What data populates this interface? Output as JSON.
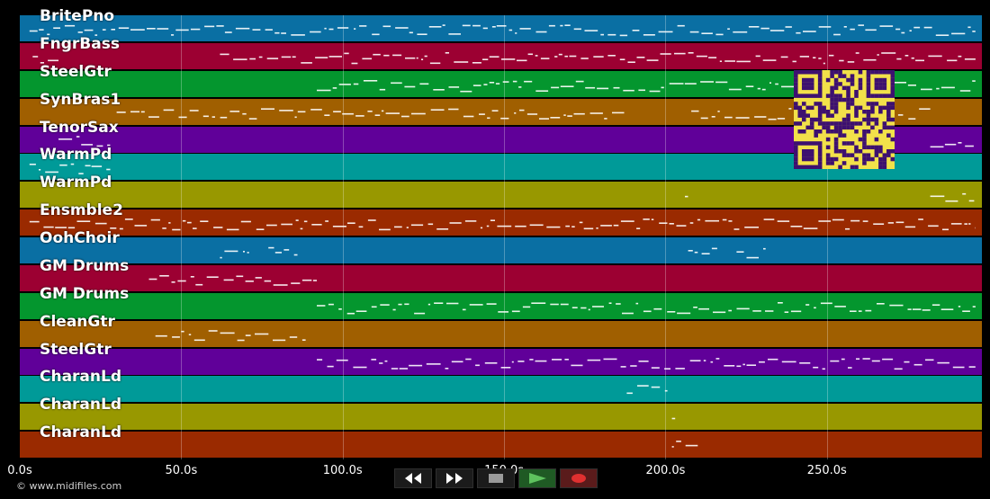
{
  "tracks": [
    {
      "name": "BritePno",
      "color": "#0a6fa3"
    },
    {
      "name": "FngrBass",
      "color": "#9c0032"
    },
    {
      "name": "SteelGtr",
      "color": "#04962e"
    },
    {
      "name": "SynBras1",
      "color": "#a05f00"
    },
    {
      "name": "TenorSax",
      "color": "#600099"
    },
    {
      "name": "WarmPd",
      "color": "#009a98"
    },
    {
      "name": "WarmPd",
      "color": "#989800"
    },
    {
      "name": "Ensmble2",
      "color": "#9a2a00"
    },
    {
      "name": "OohChoir",
      "color": "#0a6fa3"
    },
    {
      "name": "GM Drums",
      "color": "#9c0032"
    },
    {
      "name": "GM Drums",
      "color": "#04962e"
    },
    {
      "name": "CleanGtr",
      "color": "#a05f00"
    },
    {
      "name": "SteelGtr",
      "color": "#600099"
    },
    {
      "name": "CharanLd",
      "color": "#009a98"
    },
    {
      "name": "CharanLd",
      "color": "#989800"
    },
    {
      "name": "CharanLd",
      "color": "#9a2a00"
    }
  ],
  "time_axis": {
    "ticks": [
      "0.0s",
      "50.0s",
      "100.0s",
      "150.0s",
      "200.0s",
      "250.0s"
    ],
    "tick_values": [
      0,
      50,
      100,
      150,
      200,
      250
    ],
    "max_seconds": 298
  },
  "copyright": "© www.midifiles.com",
  "transport": {
    "rewind_icon": "rewind-icon",
    "forward_icon": "fast-forward-icon",
    "stop_icon": "stop-icon",
    "play_icon": "play-icon",
    "record_icon": "record-icon"
  },
  "qr_code_icon": "qr-code-icon"
}
